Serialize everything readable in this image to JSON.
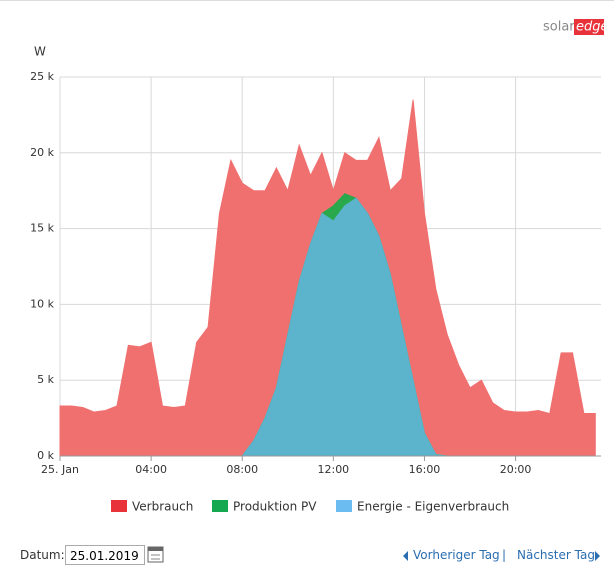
{
  "chart_data": {
    "type": "area",
    "logo": {
      "part1": "solar",
      "part2": "edge"
    },
    "y_label": "W",
    "x": [
      0,
      0.5,
      1,
      1.5,
      2,
      2.5,
      3,
      3.5,
      4,
      4.5,
      5,
      5.5,
      6,
      6.5,
      7,
      7.5,
      8,
      8.5,
      9,
      9.5,
      10,
      10.5,
      11,
      11.5,
      12,
      12.5,
      13,
      13.5,
      14,
      14.5,
      15,
      15.5,
      16,
      16.5,
      17,
      17.5,
      18,
      18.5,
      19,
      19.5,
      20,
      20.5,
      21,
      21.5,
      22,
      22.5,
      23,
      23.5
    ],
    "xlim": [
      0,
      23.75
    ],
    "xticks": [
      {
        "value": 0,
        "label": "25. Jan"
      },
      {
        "value": 4,
        "label": "04:00"
      },
      {
        "value": 8,
        "label": "08:00"
      },
      {
        "value": 12,
        "label": "12:00"
      },
      {
        "value": 16,
        "label": "16:00"
      },
      {
        "value": 20,
        "label": "20:00"
      }
    ],
    "ylim": [
      0,
      25000
    ],
    "yticks": [
      {
        "value": 0,
        "label": "0 k"
      },
      {
        "value": 5000,
        "label": "5 k"
      },
      {
        "value": 10000,
        "label": "10 k"
      },
      {
        "value": 15000,
        "label": "15 k"
      },
      {
        "value": 20000,
        "label": "20 k"
      },
      {
        "value": 25000,
        "label": "25 k"
      }
    ],
    "grid": true,
    "series": [
      {
        "name": "Verbrauch",
        "color": "#e8333a",
        "fill": "#f07070",
        "values": [
          3300,
          3300,
          3200,
          2900,
          3000,
          3300,
          7300,
          7200,
          7500,
          3300,
          3200,
          3300,
          7500,
          8500,
          16000,
          19500,
          18000,
          17500,
          17500,
          19000,
          17500,
          20500,
          18500,
          20000,
          17500,
          20000,
          19500,
          19500,
          21000,
          17500,
          18300,
          23500,
          16000,
          11000,
          8000,
          6000,
          4500,
          5000,
          3500,
          3000,
          2900,
          2900,
          3000,
          2800,
          6800,
          6800,
          2800,
          2800
        ]
      },
      {
        "name": "Produktion PV",
        "color": "#15a851",
        "fill": "#2aa84c",
        "values": [
          0,
          0,
          0,
          0,
          0,
          0,
          0,
          0,
          0,
          0,
          0,
          0,
          0,
          0,
          0,
          0,
          0,
          1000,
          2500,
          4500,
          8000,
          11500,
          14000,
          16000,
          16500,
          17300,
          17000,
          16000,
          14500,
          12000,
          8500,
          5000,
          1500,
          100,
          0,
          0,
          0,
          0,
          0,
          0,
          0,
          0,
          0,
          0,
          0,
          0,
          0,
          0
        ]
      },
      {
        "name": "Energie - Eigenverbrauch",
        "color": "#6bbcf0",
        "fill": "#5bb4cc",
        "values": [
          0,
          0,
          0,
          0,
          0,
          0,
          0,
          0,
          0,
          0,
          0,
          0,
          0,
          0,
          0,
          0,
          0,
          1000,
          2500,
          4500,
          8000,
          11500,
          14000,
          16000,
          15500,
          16500,
          17000,
          16000,
          14500,
          12000,
          8500,
          5000,
          1500,
          100,
          0,
          0,
          0,
          0,
          0,
          0,
          0,
          0,
          0,
          0,
          0,
          0,
          0,
          0
        ]
      }
    ]
  },
  "controls": {
    "date_label": "Datum:",
    "date": "25.01.2019",
    "prev": "Vorheriger Tag",
    "separator": "|",
    "next": "Nächster Tag"
  }
}
